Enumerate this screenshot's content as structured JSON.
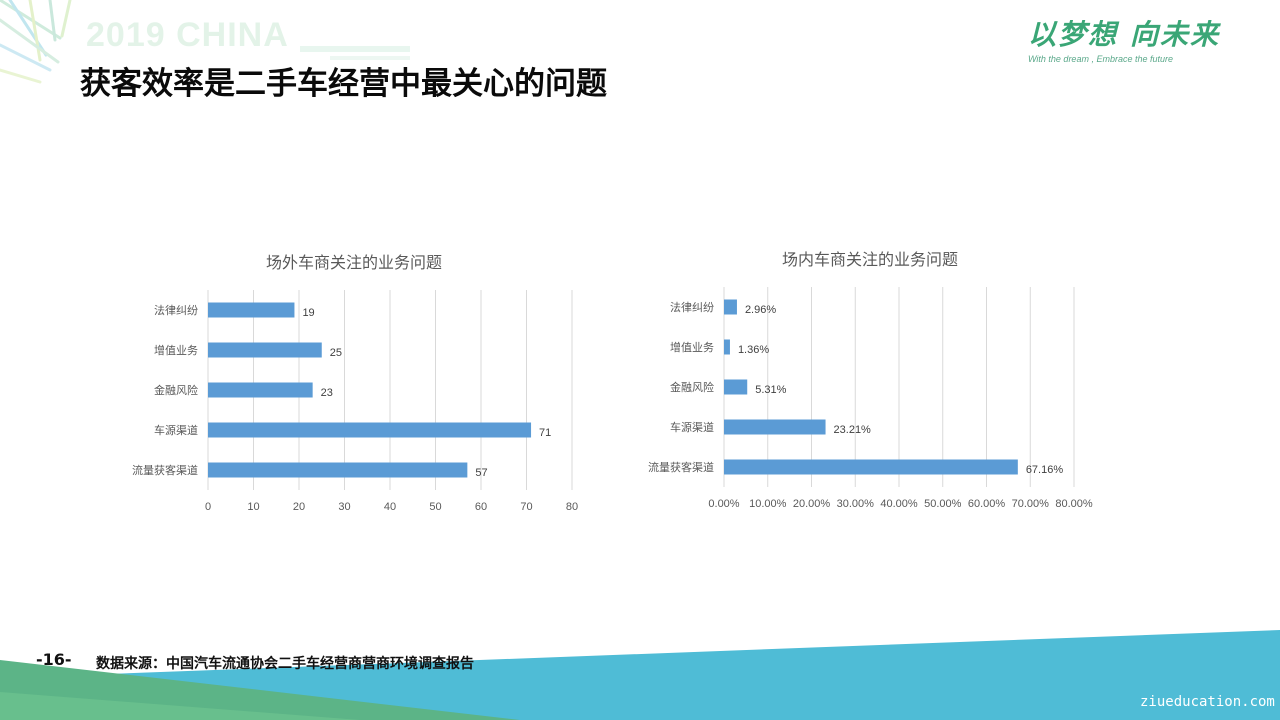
{
  "header": {
    "event_watermark": "2019 CHINA",
    "slide_title": "获客效率是二手车经营中最关心的问题"
  },
  "logo": {
    "main_left": "以梦想",
    "main_right": "向未来",
    "tagline": "With the dream , Embrace the future"
  },
  "chart_data": [
    {
      "type": "bar",
      "orientation": "horizontal",
      "title": "场外车商关注的业务问题",
      "categories": [
        "法律纠纷",
        "增值业务",
        "金融风险",
        "车源渠道",
        "流量获客渠道"
      ],
      "values": [
        19,
        25,
        23,
        71,
        57
      ],
      "value_labels": [
        "19",
        "25",
        "23",
        "71",
        "57"
      ],
      "xlim": [
        0,
        80
      ],
      "xticks": [
        "0",
        "10",
        "20",
        "30",
        "40",
        "50",
        "60",
        "70",
        "80"
      ],
      "grid": "vertical",
      "bar_color": "#5b9bd5"
    },
    {
      "type": "bar",
      "orientation": "horizontal",
      "title": "场内车商关注的业务问题",
      "categories": [
        "法律纠纷",
        "增值业务",
        "金融风险",
        "车源渠道",
        "流量获客渠道"
      ],
      "values": [
        2.96,
        1.36,
        5.31,
        23.21,
        67.16
      ],
      "value_labels": [
        "2.96%",
        "1.36%",
        "5.31%",
        "23.21%",
        "67.16%"
      ],
      "xlim": [
        0,
        80
      ],
      "xticks": [
        "0.00%",
        "10.00%",
        "20.00%",
        "30.00%",
        "40.00%",
        "50.00%",
        "60.00%",
        "70.00%",
        "80.00%"
      ],
      "grid": "vertical",
      "bar_color": "#5b9bd5"
    }
  ],
  "footer": {
    "page_number": "-16-",
    "source": "数据来源：中国汽车流通协会二手车经营商营商环境调查报告",
    "site_watermark": "ziueducation.com"
  },
  "colors": {
    "accent_green": "#3aa676",
    "bar_blue": "#5b9bd5",
    "footer_teal": "#4fbcd6",
    "footer_green": "#5cb487"
  }
}
